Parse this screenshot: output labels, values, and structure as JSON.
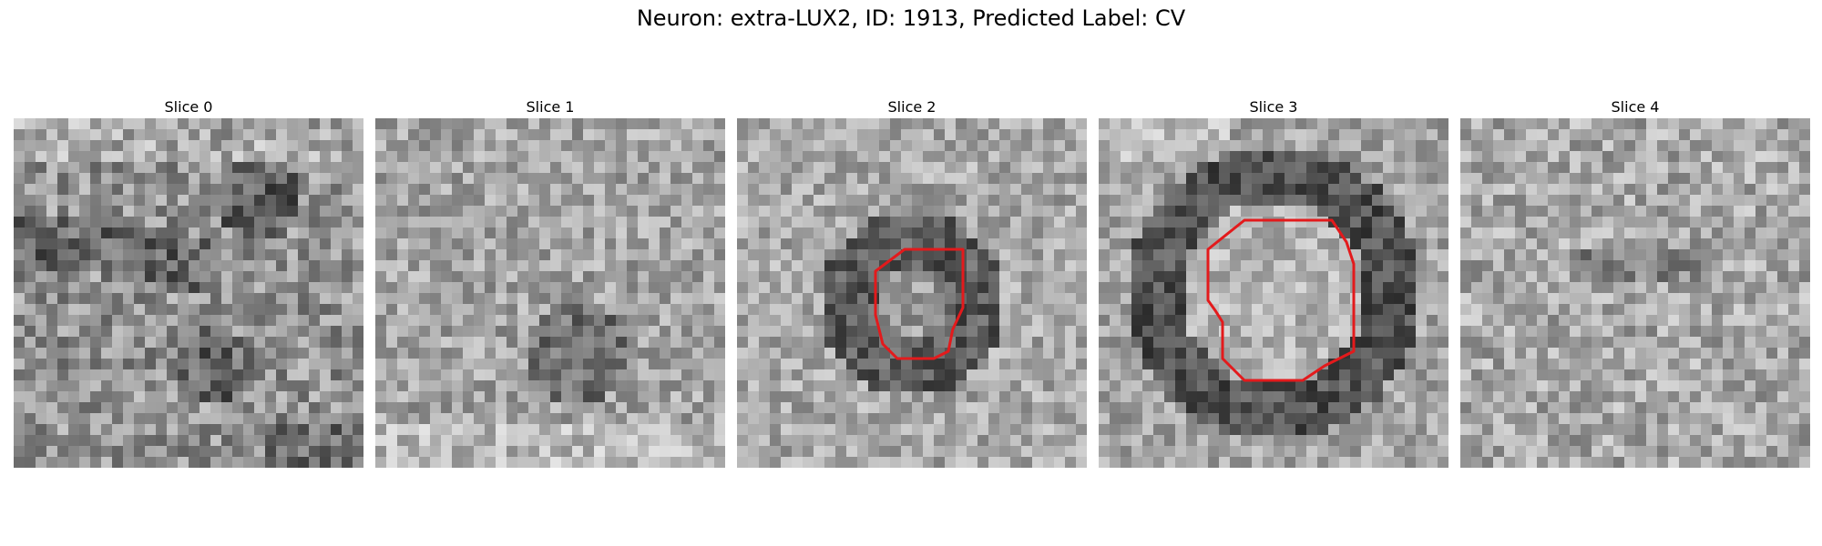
{
  "figure": {
    "title": "Neuron: extra-LUX2, ID: 1913, Predicted Label: CV"
  },
  "colors": {
    "contour": "#e31a1c",
    "background": "#ffffff"
  },
  "panels": [
    {
      "title": "Slice 0",
      "pattern": "dark-streaks",
      "contour": null
    },
    {
      "title": "Slice 1",
      "pattern": "mid-texture",
      "contour": null
    },
    {
      "title": "Slice 2",
      "pattern": "dark-ring-small",
      "contour": "small"
    },
    {
      "title": "Slice 3",
      "pattern": "dark-ring-large",
      "contour": "large"
    },
    {
      "title": "Slice 4",
      "pattern": "light-noise",
      "contour": null
    }
  ]
}
